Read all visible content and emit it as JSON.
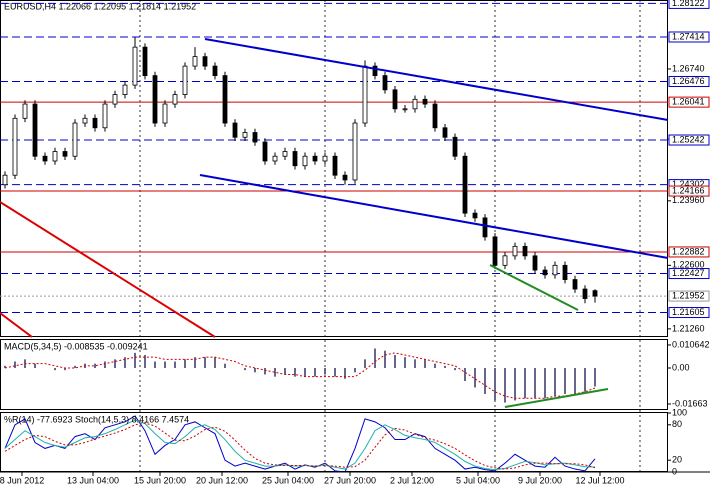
{
  "chart_data": [
    {
      "type": "candlestick",
      "title": "EURUSD,H4  1.22066 1.22095 1.21814 1.21952",
      "open": [
        1.243,
        1.245,
        1.257,
        1.26,
        1.249,
        1.248,
        1.25,
        1.249,
        1.256,
        1.257,
        1.255,
        1.26,
        1.262,
        1.264,
        1.272,
        1.266,
        1.256,
        1.26,
        1.262,
        1.268,
        1.27,
        1.268,
        1.266,
        1.256,
        1.253,
        1.254,
        1.252,
        1.248,
        1.249,
        1.25,
        1.247,
        1.249,
        1.248,
        1.249,
        1.245,
        1.244,
        1.256,
        1.268,
        1.266,
        1.263,
        1.259,
        1.259,
        1.261,
        1.26,
        1.255,
        1.253,
        1.249,
        1.237,
        1.236,
        1.232,
        1.226,
        1.228,
        1.23,
        1.228,
        1.225,
        1.224,
        1.226,
        1.223,
        1.221,
        1.22066
      ],
      "high": [
        1.2458,
        1.2578,
        1.2608,
        1.2608,
        1.2498,
        1.2508,
        1.2508,
        1.2568,
        1.2578,
        1.2578,
        1.2608,
        1.2628,
        1.2648,
        1.2741,
        1.2728,
        1.2668,
        1.2608,
        1.2628,
        1.2688,
        1.272,
        1.2708,
        1.2688,
        1.2668,
        1.2568,
        1.2548,
        1.2548,
        1.2528,
        1.2498,
        1.2508,
        1.2508,
        1.2498,
        1.2498,
        1.2498,
        1.2498,
        1.2458,
        1.2568,
        1.2692,
        1.2688,
        1.2668,
        1.2638,
        1.2598,
        1.2618,
        1.2618,
        1.2608,
        1.2558,
        1.2538,
        1.2498,
        1.2378,
        1.2368,
        1.2328,
        1.2288,
        1.2308,
        1.2308,
        1.2288,
        1.2258,
        1.2268,
        1.2268,
        1.2238,
        1.2218,
        1.22095
      ],
      "low": [
        1.2422,
        1.2442,
        1.2562,
        1.2482,
        1.2472,
        1.2472,
        1.2482,
        1.2482,
        1.2552,
        1.2542,
        1.2542,
        1.2592,
        1.2612,
        1.2632,
        1.2652,
        1.2552,
        1.2552,
        1.2592,
        1.2612,
        1.2672,
        1.2672,
        1.2652,
        1.2552,
        1.2522,
        1.2522,
        1.2512,
        1.2472,
        1.2472,
        1.2482,
        1.2462,
        1.2462,
        1.2472,
        1.2472,
        1.2442,
        1.243,
        1.2432,
        1.2552,
        1.2652,
        1.2622,
        1.2582,
        1.2582,
        1.2582,
        1.2592,
        1.2542,
        1.2522,
        1.2482,
        1.2362,
        1.2352,
        1.2312,
        1.2252,
        1.2252,
        1.2272,
        1.2272,
        1.2242,
        1.2232,
        1.2232,
        1.2222,
        1.2202,
        1.218,
        1.21814
      ],
      "close": [
        1.245,
        1.257,
        1.26,
        1.249,
        1.248,
        1.25,
        1.249,
        1.256,
        1.257,
        1.255,
        1.26,
        1.262,
        1.264,
        1.272,
        1.266,
        1.256,
        1.26,
        1.262,
        1.268,
        1.27,
        1.268,
        1.266,
        1.256,
        1.253,
        1.254,
        1.252,
        1.248,
        1.249,
        1.25,
        1.247,
        1.249,
        1.248,
        1.249,
        1.245,
        1.244,
        1.256,
        1.268,
        1.266,
        1.263,
        1.259,
        1.259,
        1.261,
        1.26,
        1.255,
        1.253,
        1.249,
        1.237,
        1.236,
        1.232,
        1.226,
        1.228,
        1.23,
        1.228,
        1.225,
        1.224,
        1.226,
        1.223,
        1.221,
        1.219,
        1.21952
      ],
      "ylim": [
        1.21089,
        1.28194
      ],
      "yticks": [
        {
          "value": 1.2674,
          "label": "1.26740"
        },
        {
          "value": 1.2526,
          "label": "1.25260"
        },
        {
          "value": 1.2396,
          "label": "1.23960"
        },
        {
          "value": 1.226,
          "label": "1.22600"
        },
        {
          "value": 1.2126,
          "label": "1.21260"
        }
      ],
      "levels": [
        {
          "value": 1.28122,
          "color": "#0000cc",
          "style": "dashed"
        },
        {
          "value": 1.27414,
          "color": "#0000cc",
          "style": "dashed"
        },
        {
          "value": 1.26476,
          "color": "#0000cc",
          "style": "dashed"
        },
        {
          "value": 1.26041,
          "color": "#cc0000",
          "style": "solid"
        },
        {
          "value": 1.25242,
          "color": "#0000cc",
          "style": "dashed"
        },
        {
          "value": 1.24302,
          "color": "#0000cc",
          "style": "dashed"
        },
        {
          "value": 1.24166,
          "color": "#cc0000",
          "style": "solid"
        },
        {
          "value": 1.22882,
          "color": "#cc0000",
          "style": "solid"
        },
        {
          "value": 1.22427,
          "color": "#0000cc",
          "style": "dashed"
        },
        {
          "value": 1.21952,
          "color": "#999999",
          "style": "dotted"
        },
        {
          "value": 1.21605,
          "color": "#0000cc",
          "style": "dashed"
        }
      ],
      "xticks": [
        {
          "value": 1.7,
          "label": "8 Jun 2012"
        },
        {
          "value": 8.8,
          "label": "13 Jun 04:00"
        },
        {
          "value": 15.5,
          "label": "15 Jun 20:00"
        },
        {
          "value": 21.7,
          "label": "20 Jun 12:00"
        },
        {
          "value": 28.3,
          "label": "25 Jun 04:00"
        },
        {
          "value": 34.5,
          "label": "27 Jun 20:00"
        },
        {
          "value": 40.7,
          "label": "2 Jul 12:00"
        },
        {
          "value": 47.3,
          "label": "5 Jul 04:00"
        },
        {
          "value": 53.5,
          "label": "9 Jul 20:00"
        },
        {
          "value": 59.5,
          "label": "12 Jul 12:00"
        }
      ]
    },
    {
      "type": "indicator",
      "title": "MACD(5,34,5) -0.008535 -0.009241",
      "ylim": [
        -0.01942,
        0.01294
      ],
      "yticks": [
        0.010642,
        {
          "value": 0,
          "label": "0.00"
        },
        -0.01663
      ],
      "series": [
        {
          "type": "bar",
          "color": "#333366",
          "values": [
            0.001,
            0.003,
            0.004,
            0.002,
            0.0,
            -0.001,
            -0.001,
            0.001,
            0.002,
            0.002,
            0.003,
            0.004,
            0.005,
            0.007,
            0.006,
            0.003,
            0.003,
            0.003,
            0.004,
            0.005,
            0.005,
            0.005,
            0.002,
            0.0,
            -0.001,
            -0.002,
            -0.003,
            -0.004,
            -0.003,
            -0.004,
            -0.004,
            -0.004,
            -0.003,
            -0.004,
            -0.005,
            -0.002,
            0.004,
            0.009,
            0.008,
            0.006,
            0.005,
            0.004,
            0.004,
            0.002,
            0.001,
            -0.001,
            -0.006,
            -0.009,
            -0.012,
            -0.015,
            -0.016,
            -0.015,
            -0.014,
            -0.014,
            -0.014,
            -0.013,
            -0.012,
            -0.012,
            -0.011,
            -0.008535
          ]
        },
        {
          "type": "line",
          "style": "dotted",
          "color": "#cc0000",
          "values": [
            0.0,
            0.001,
            0.002,
            0.002,
            0.002,
            0.001,
            0.0,
            0.0,
            0.001,
            0.001,
            0.002,
            0.003,
            0.004,
            0.005,
            0.005,
            0.005,
            0.004,
            0.004,
            0.004,
            0.004,
            0.005,
            0.005,
            0.004,
            0.003,
            0.001,
            0.0,
            -0.001,
            -0.002,
            -0.003,
            -0.003,
            -0.004,
            -0.004,
            -0.004,
            -0.004,
            -0.004,
            -0.004,
            -0.001,
            0.003,
            0.006,
            0.007,
            0.006,
            0.005,
            0.004,
            0.003,
            0.002,
            0.001,
            -0.002,
            -0.005,
            -0.008,
            -0.011,
            -0.013,
            -0.014,
            -0.014,
            -0.014,
            -0.014,
            -0.013,
            -0.013,
            -0.012,
            -0.011,
            -0.009241
          ]
        }
      ]
    },
    {
      "type": "indicator",
      "title": "%R(14) -77.6923 Stoch(14,5,3) 8.4166 7.4574",
      "ylim": [
        0,
        100
      ],
      "yticks": [
        100,
        80,
        20,
        0
      ],
      "series": [
        {
          "type": "line",
          "style": "solid",
          "color": "#0000cc",
          "ylim": [
            -100,
            0
          ],
          "values": [
            -60,
            -20,
            -10,
            -50,
            -60,
            -55,
            -60,
            -40,
            -35,
            -45,
            -25,
            -20,
            -15,
            -5,
            -30,
            -70,
            -55,
            -45,
            -20,
            -15,
            -25,
            -35,
            -80,
            -90,
            -85,
            -90,
            -95,
            -90,
            -85,
            -95,
            -88,
            -92,
            -85,
            -98,
            -100,
            -60,
            -10,
            -15,
            -25,
            -45,
            -45,
            -35,
            -40,
            -60,
            -70,
            -80,
            -95,
            -92,
            -96,
            -98,
            -85,
            -70,
            -80,
            -90,
            -92,
            -75,
            -90,
            -95,
            -98,
            -77.6923
          ]
        },
        {
          "type": "line",
          "style": "solid",
          "color": "#20b2aa",
          "values": [
            40,
            55,
            70,
            60,
            50,
            45,
            42,
            50,
            58,
            60,
            65,
            72,
            80,
            88,
            82,
            65,
            50,
            48,
            60,
            75,
            80,
            72,
            55,
            35,
            20,
            15,
            10,
            10,
            12,
            10,
            11,
            10,
            12,
            8,
            5,
            15,
            40,
            70,
            80,
            72,
            62,
            58,
            55,
            50,
            40,
            30,
            18,
            10,
            6,
            4,
            6,
            12,
            18,
            16,
            12,
            14,
            15,
            12,
            9,
            8.4166
          ]
        },
        {
          "type": "line",
          "style": "dotted",
          "color": "#cc0000",
          "values": [
            35,
            45,
            55,
            62,
            60,
            52,
            46,
            46,
            50,
            56,
            61,
            66,
            72,
            80,
            83,
            78,
            66,
            54,
            53,
            61,
            72,
            76,
            69,
            54,
            37,
            23,
            15,
            12,
            11,
            11,
            11,
            10,
            11,
            10,
            8,
            9,
            20,
            42,
            63,
            74,
            71,
            64,
            58,
            54,
            48,
            40,
            29,
            19,
            11,
            7,
            5,
            7,
            12,
            15,
            15,
            14,
            14,
            14,
            12,
            7.4574
          ]
        }
      ]
    }
  ]
}
